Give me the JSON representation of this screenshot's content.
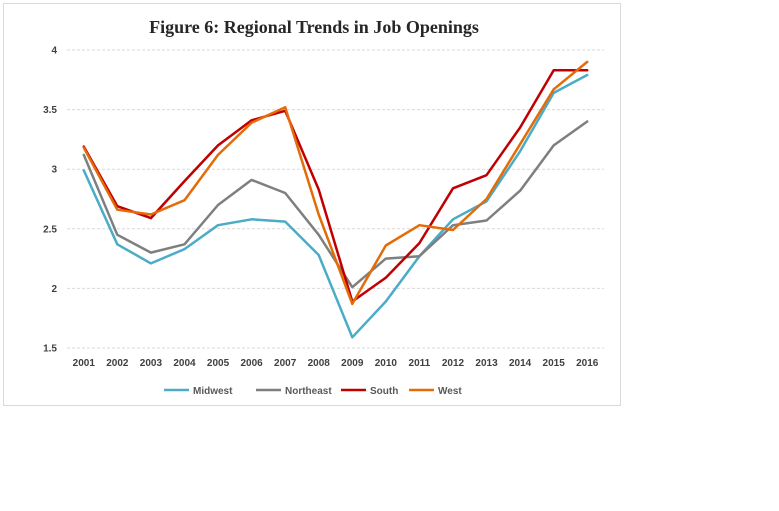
{
  "chart_data": {
    "type": "line",
    "title": "Figure 6: Regional Trends in Job Openings",
    "xlabel": "",
    "ylabel": "",
    "categories": [
      "2001",
      "2002",
      "2003",
      "2004",
      "2005",
      "2006",
      "2007",
      "2008",
      "2009",
      "2010",
      "2011",
      "2012",
      "2013",
      "2014",
      "2015",
      "2016"
    ],
    "ylim": [
      1.5,
      4
    ],
    "yticks": [
      1.5,
      2,
      2.5,
      3,
      3.5,
      4
    ],
    "ytick_labels": [
      "1.5",
      "2",
      "2.5",
      "3",
      "3.5",
      "4"
    ],
    "grid": true,
    "legend_position": "bottom",
    "series": [
      {
        "name": "Midwest",
        "color": "#4bacc6",
        "values": [
          2.99,
          2.37,
          2.21,
          2.33,
          2.53,
          2.58,
          2.56,
          2.28,
          1.59,
          1.89,
          2.27,
          2.58,
          2.73,
          3.15,
          3.64,
          3.79
        ]
      },
      {
        "name": "Northeast",
        "color": "#7f7f7f",
        "values": [
          3.12,
          2.45,
          2.3,
          2.37,
          2.7,
          2.91,
          2.8,
          2.45,
          2.01,
          2.25,
          2.27,
          2.53,
          2.57,
          2.82,
          3.2,
          3.4
        ]
      },
      {
        "name": "South",
        "color": "#c00000",
        "values": [
          3.19,
          2.69,
          2.59,
          2.9,
          3.2,
          3.41,
          3.49,
          2.83,
          1.89,
          2.09,
          2.38,
          2.84,
          2.95,
          3.35,
          3.83,
          3.83
        ]
      },
      {
        "name": "West",
        "color": "#e36c09",
        "values": [
          3.18,
          2.66,
          2.62,
          2.74,
          3.12,
          3.39,
          3.52,
          2.62,
          1.87,
          2.36,
          2.53,
          2.49,
          2.75,
          3.21,
          3.67,
          3.9
        ]
      }
    ]
  }
}
